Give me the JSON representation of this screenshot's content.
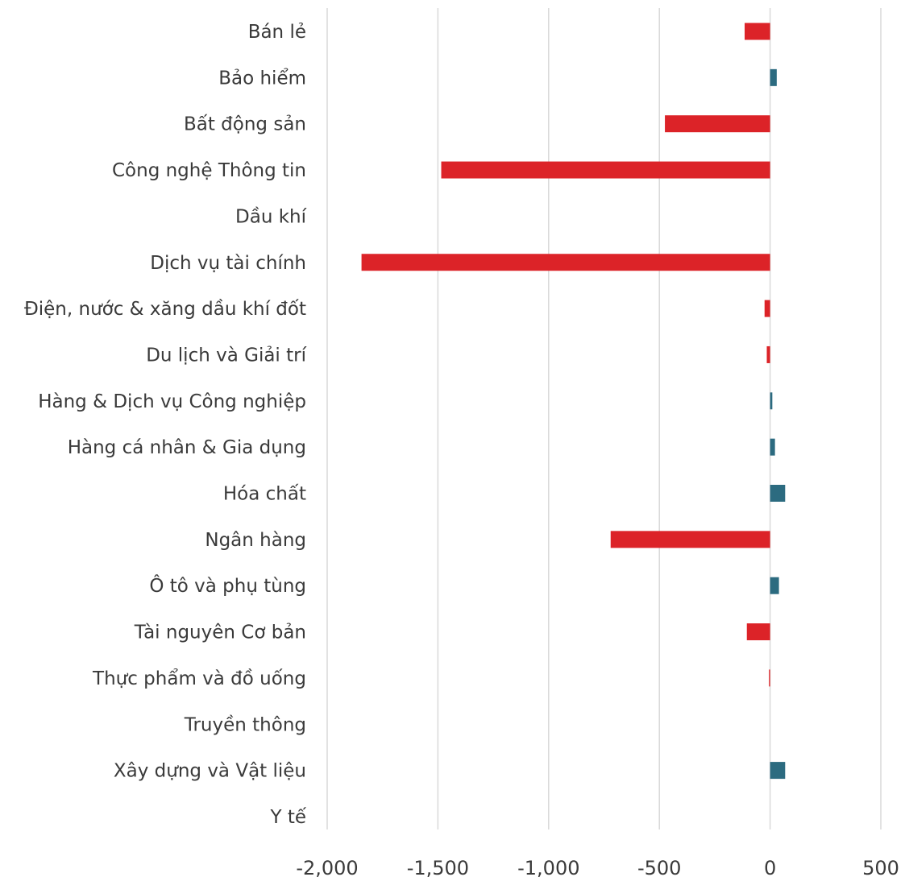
{
  "chart_data": {
    "type": "bar",
    "orientation": "horizontal",
    "categories": [
      "Bán lẻ",
      "Bảo hiểm",
      "Bất động sản",
      "Công nghệ Thông tin",
      "Dầu khí",
      "Dịch vụ tài chính",
      "Điện, nước & xăng dầu khí đốt",
      "Du lịch và Giải trí",
      "Hàng & Dịch vụ Công nghiệp",
      "Hàng cá nhân & Gia dụng",
      "Hóa chất",
      "Ngân hàng",
      "Ô tô và phụ tùng",
      "Tài nguyên Cơ bản",
      "Thực phẩm và đồ uống",
      "Truyền thông",
      "Xây dựng và Vật liệu",
      "Y tế"
    ],
    "values": [
      -115,
      30,
      -475,
      -1485,
      0,
      -1845,
      -25,
      -15,
      10,
      22,
      68,
      -720,
      40,
      -105,
      -5,
      0,
      68,
      0
    ],
    "xlim": [
      -2000,
      500
    ],
    "xticks": [
      -2000,
      -1500,
      -1000,
      -500,
      0,
      500
    ],
    "xtick_labels": [
      "-2,000",
      "-1,500",
      "-1,000",
      "-500",
      "0",
      "500"
    ],
    "grid": true,
    "colors": {
      "negative": "#dc2328",
      "positive": "#2c6b80"
    },
    "title": "",
    "xlabel": "",
    "ylabel": ""
  }
}
